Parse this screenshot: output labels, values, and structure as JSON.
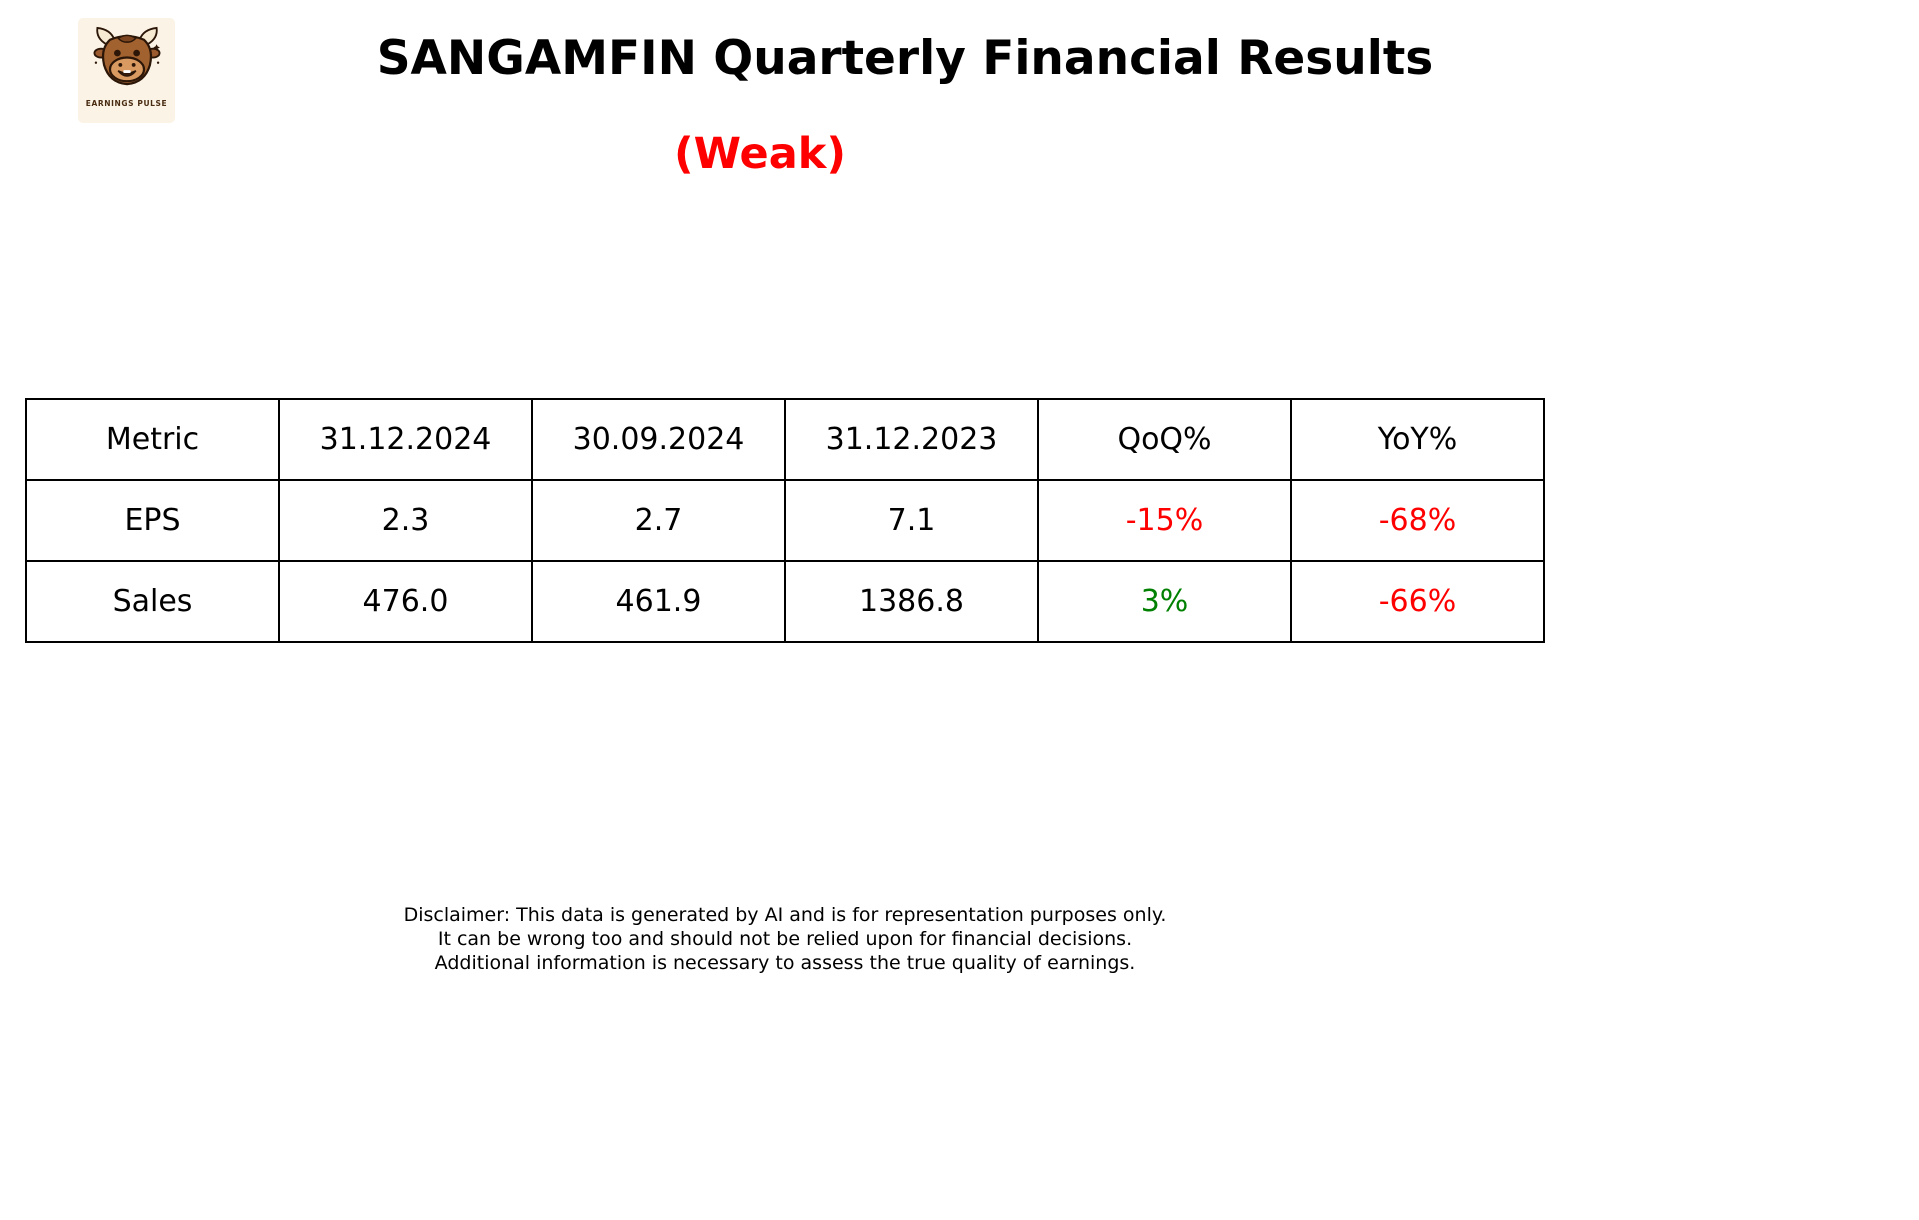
{
  "logo": {
    "brand": "EARNINGS PULSE",
    "icon": "bull-cartoon-icon",
    "background_color": "#fbf4e6"
  },
  "header": {
    "title": "SANGAMFIN Quarterly Financial Results",
    "verdict": "(Weak)",
    "verdict_color": "#ff0000"
  },
  "table": {
    "columns": [
      "Metric",
      "31.12.2024",
      "30.09.2024",
      "31.12.2023",
      "QoQ%",
      "YoY%"
    ],
    "rows": [
      {
        "cells": [
          "EPS",
          "2.3",
          "2.7",
          "7.1",
          "-15%",
          "-68%"
        ],
        "colors": [
          "#000000",
          "#000000",
          "#000000",
          "#000000",
          "#ff0000",
          "#ff0000"
        ]
      },
      {
        "cells": [
          "Sales",
          "476.0",
          "461.9",
          "1386.8",
          "3%",
          "-66%"
        ],
        "colors": [
          "#000000",
          "#000000",
          "#000000",
          "#000000",
          "#008000",
          "#ff0000"
        ]
      }
    ],
    "border_color": "#000000"
  },
  "disclaimer": {
    "lines": [
      "Disclaimer: This data is generated by AI and is for representation purposes only.",
      "It can be wrong too and should not be relied upon for financial decisions.",
      "Additional information is necessary to assess the true quality of earnings."
    ]
  },
  "chart_data": {
    "type": "table",
    "title": "SANGAMFIN Quarterly Financial Results",
    "subtitle": "(Weak)",
    "columns": [
      "Metric",
      "31.12.2024",
      "30.09.2024",
      "31.12.2023",
      "QoQ%",
      "YoY%"
    ],
    "rows": [
      [
        "EPS",
        2.3,
        2.7,
        7.1,
        "-15%",
        "-68%"
      ],
      [
        "Sales",
        476.0,
        461.9,
        1386.8,
        "3%",
        "-66%"
      ]
    ],
    "notes": "QoQ%/YoY% negative values shown in red, positive in green"
  }
}
